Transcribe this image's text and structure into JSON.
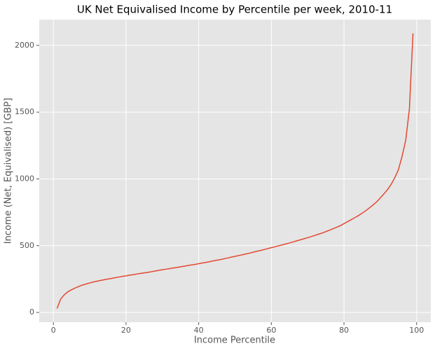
{
  "chart_data": {
    "type": "line",
    "title": "UK Net Equivalised Income by Percentile per week, 2010-11",
    "x_label": "Income Percentile",
    "y_label": "Income (Net, Equivalised) [GBP]",
    "x": [
      1,
      2,
      3,
      4,
      5,
      6,
      7,
      8,
      9,
      10,
      11,
      12,
      13,
      14,
      15,
      16,
      17,
      18,
      19,
      20,
      21,
      22,
      23,
      24,
      25,
      26,
      27,
      28,
      29,
      30,
      31,
      32,
      33,
      34,
      35,
      36,
      37,
      38,
      39,
      40,
      41,
      42,
      43,
      44,
      45,
      46,
      47,
      48,
      49,
      50,
      51,
      52,
      53,
      54,
      55,
      56,
      57,
      58,
      59,
      60,
      61,
      62,
      63,
      64,
      65,
      66,
      67,
      68,
      69,
      70,
      71,
      72,
      73,
      74,
      75,
      76,
      77,
      78,
      79,
      80,
      81,
      82,
      83,
      84,
      85,
      86,
      87,
      88,
      89,
      90,
      91,
      92,
      93,
      94,
      95,
      96,
      97,
      98,
      99
    ],
    "values": [
      30,
      100,
      132,
      155,
      170,
      183,
      195,
      205,
      213,
      221,
      228,
      234,
      240,
      245,
      250,
      255,
      260,
      265,
      270,
      274,
      279,
      283,
      288,
      292,
      296,
      300,
      305,
      310,
      315,
      320,
      324,
      328,
      333,
      337,
      342,
      346,
      351,
      356,
      360,
      365,
      370,
      375,
      380,
      386,
      391,
      396,
      402,
      408,
      414,
      420,
      426,
      432,
      438,
      444,
      451,
      458,
      464,
      471,
      478,
      485,
      492,
      499,
      506,
      513,
      520,
      528,
      536,
      544,
      552,
      560,
      568,
      577,
      586,
      595,
      605,
      616,
      627,
      638,
      650,
      665,
      680,
      695,
      710,
      726,
      743,
      762,
      783,
      805,
      828,
      858,
      888,
      920,
      960,
      1010,
      1070,
      1170,
      1290,
      1520,
      2090
    ],
    "color": "#e24a33",
    "xlim": [
      -3.9,
      103.9
    ],
    "ylim": [
      -73,
      2193
    ],
    "xticks": [
      0,
      20,
      40,
      60,
      80,
      100
    ],
    "yticks": [
      0,
      500,
      1000,
      1500,
      2000
    ],
    "grid": true
  }
}
